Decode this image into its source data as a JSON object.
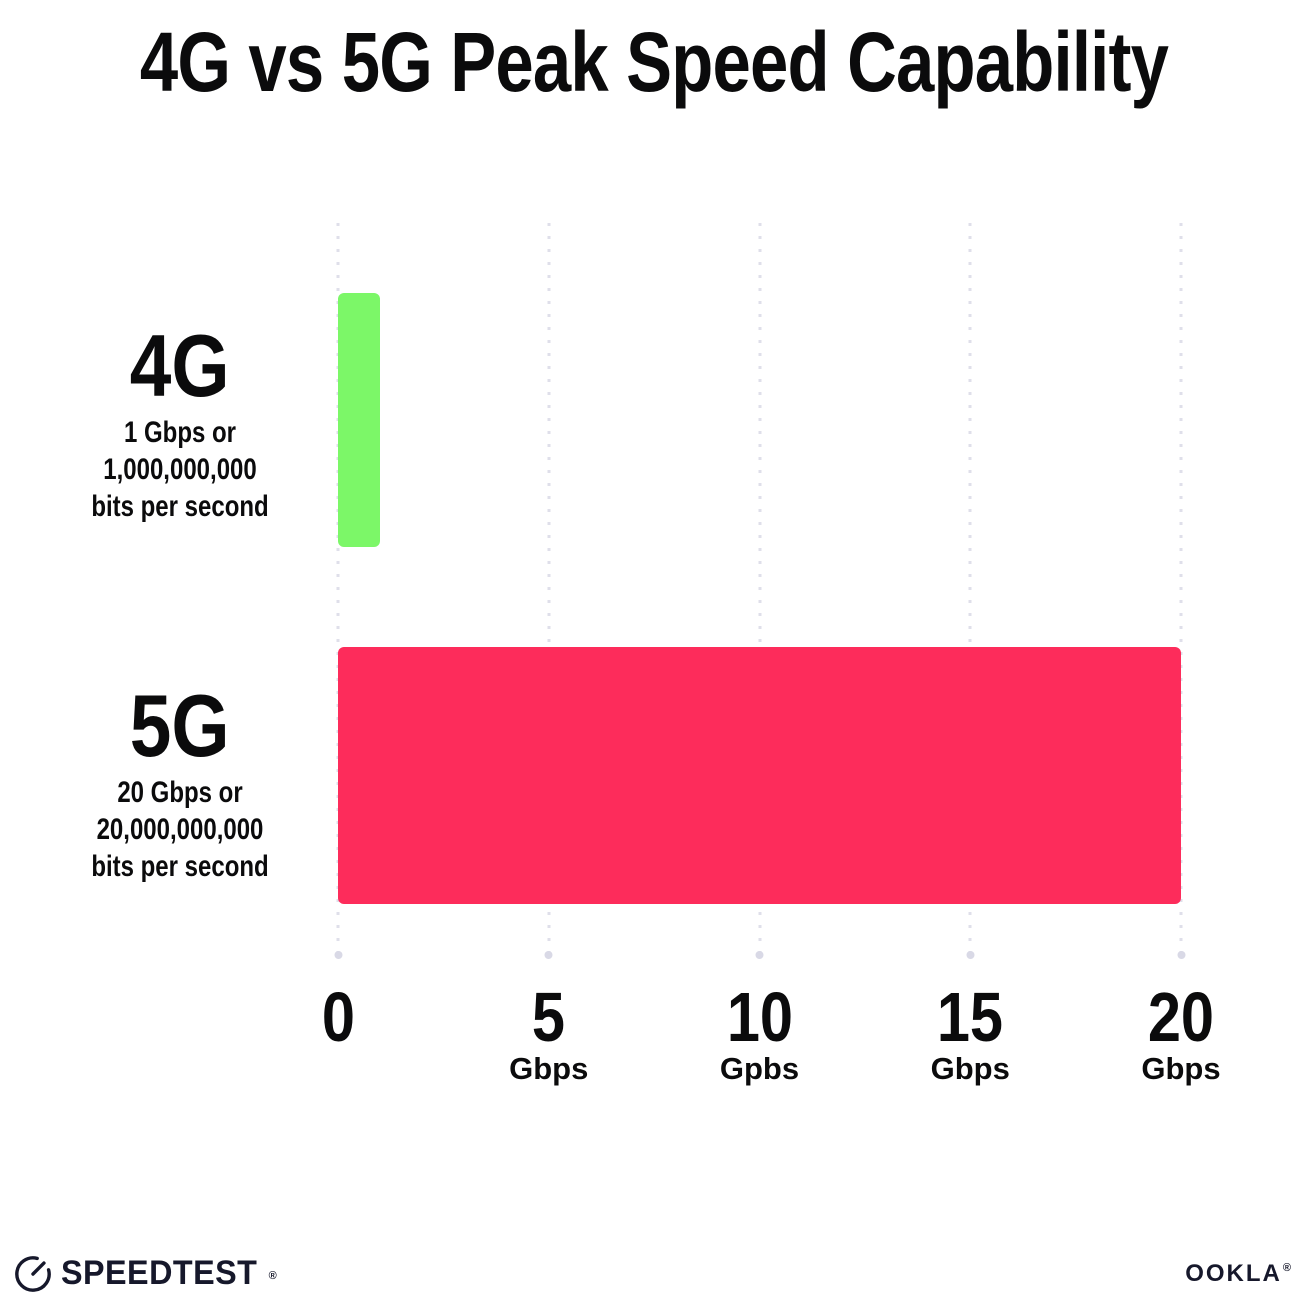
{
  "title": "4G vs 5G Peak Speed Capability",
  "chart_data": {
    "type": "bar",
    "orientation": "horizontal",
    "title": "4G vs 5G Peak Speed Capability",
    "categories": [
      "4G",
      "5G"
    ],
    "values": [
      1,
      20
    ],
    "value_unit": "Gbps",
    "xlim": [
      0,
      20
    ],
    "grid": "vertical-dotted-gridlines",
    "legend": "none",
    "x_ticks": [
      {
        "value": 0,
        "label": "0",
        "unit": ""
      },
      {
        "value": 5,
        "label": "5",
        "unit": "Gbps"
      },
      {
        "value": 10,
        "label": "10",
        "unit": "Gpbs"
      },
      {
        "value": 15,
        "label": "15",
        "unit": "Gbps"
      },
      {
        "value": 20,
        "label": "20",
        "unit": "Gbps"
      }
    ],
    "bars": [
      {
        "label": "4G",
        "value": 1,
        "color": "#7CF768",
        "sublabel_lines": [
          "1 Gbps or",
          "1,000,000,000",
          "bits per second"
        ]
      },
      {
        "label": "5G",
        "value": 20,
        "color": "#FD2C5B",
        "sublabel_lines": [
          "20 Gbps or",
          "20,000,000,000",
          "bits per second"
        ]
      }
    ]
  },
  "colors": {
    "background": "#FFFFFF",
    "text": "#0B0B0C",
    "gridline": "#DFDFEA",
    "logo": "#16182B",
    "bar_4g": "#7CF768",
    "bar_5g": "#FD2C5B"
  },
  "footer": {
    "speedtest": {
      "label": "SPEEDTEST",
      "trademark": "®",
      "icon": "speedometer-gauge-icon"
    },
    "ookla": {
      "label": "OOKLA",
      "trademark": "®"
    }
  }
}
